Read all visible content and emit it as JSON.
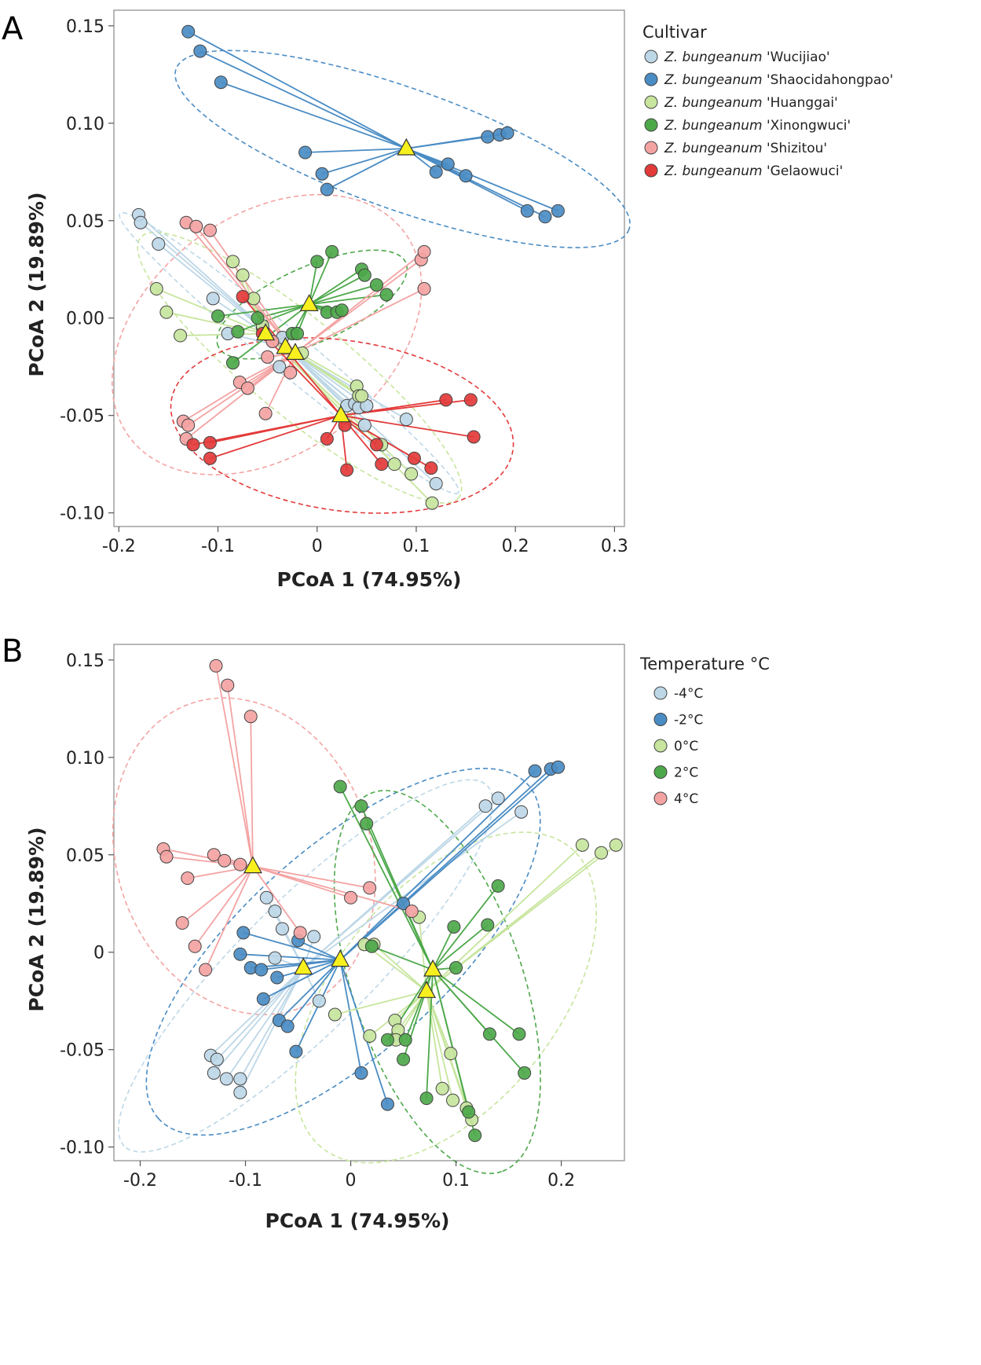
{
  "chart_data": [
    {
      "panel": "A",
      "type": "scatter",
      "subtype": "PCoA ordination with group centroids and spider lines",
      "xlabel": "PCoA 1 (74.95%)",
      "ylabel": "PCoA 2 (19.89%)",
      "xlim": [
        -0.205,
        0.31
      ],
      "ylim": [
        -0.107,
        0.158
      ],
      "xticks": [
        -0.2,
        -0.1,
        0,
        0.1,
        0.2,
        0.3
      ],
      "xtick_labels": [
        "-0.2",
        "-0.1",
        "0",
        "0.1",
        "0.2",
        "0.3"
      ],
      "yticks": [
        0.15,
        0.1,
        0.05,
        0.0,
        -0.05,
        -0.1
      ],
      "ytick_labels": [
        "0.15",
        "0.10",
        "0.05",
        "0.00",
        "-0.05",
        "-0.10"
      ],
      "legend_title": "Cultivar",
      "legend_position": "right",
      "centroid_marker": "yellow triangle",
      "series": [
        {
          "prefix": "Z. bungeanum",
          "name": "'Wucijiao'",
          "color": "#BDD7E7",
          "centroid": [
            -0.032,
            -0.015
          ],
          "points": [
            [
              -0.18,
              0.053
            ],
            [
              -0.178,
              0.049
            ],
            [
              -0.16,
              0.038
            ],
            [
              -0.105,
              0.01
            ],
            [
              -0.09,
              -0.008
            ],
            [
              -0.055,
              -0.005
            ],
            [
              -0.035,
              -0.01
            ],
            [
              -0.038,
              -0.025
            ],
            [
              0.03,
              -0.045
            ],
            [
              0.038,
              -0.044
            ],
            [
              0.042,
              -0.046
            ],
            [
              0.05,
              -0.045
            ],
            [
              0.048,
              -0.055
            ],
            [
              0.09,
              -0.052
            ],
            [
              0.12,
              -0.085
            ]
          ]
        },
        {
          "prefix": "Z. bungeanum",
          "name": "'Shaocidahongpao'",
          "color": "#4A8CC4",
          "centroid": [
            0.09,
            0.087
          ],
          "points": [
            [
              -0.13,
              0.147
            ],
            [
              -0.118,
              0.137
            ],
            [
              -0.097,
              0.121
            ],
            [
              -0.012,
              0.085
            ],
            [
              0.005,
              0.074
            ],
            [
              0.01,
              0.066
            ],
            [
              0.12,
              0.075
            ],
            [
              0.132,
              0.079
            ],
            [
              0.15,
              0.073
            ],
            [
              0.172,
              0.093
            ],
            [
              0.184,
              0.094
            ],
            [
              0.192,
              0.095
            ],
            [
              0.212,
              0.055
            ],
            [
              0.23,
              0.052
            ],
            [
              0.243,
              0.055
            ]
          ]
        },
        {
          "prefix": "Z. bungeanum",
          "name": "'Huanggai'",
          "color": "#C7E59D",
          "centroid": [
            -0.052,
            -0.008
          ],
          "points": [
            [
              -0.162,
              0.015
            ],
            [
              -0.152,
              0.003
            ],
            [
              -0.138,
              -0.009
            ],
            [
              -0.085,
              0.029
            ],
            [
              -0.075,
              0.022
            ],
            [
              -0.064,
              0.01
            ],
            [
              -0.055,
              -0.004
            ],
            [
              -0.015,
              -0.018
            ],
            [
              0.04,
              -0.035
            ],
            [
              0.042,
              -0.04
            ],
            [
              0.045,
              -0.04
            ],
            [
              0.065,
              -0.065
            ],
            [
              0.078,
              -0.075
            ],
            [
              0.095,
              -0.08
            ],
            [
              0.116,
              -0.095
            ]
          ]
        },
        {
          "prefix": "Z. bungeanum",
          "name": "'Xinongwuci'",
          "color": "#4DA84A",
          "centroid": [
            -0.008,
            0.007
          ],
          "points": [
            [
              -0.085,
              -0.023
            ],
            [
              -0.08,
              -0.007
            ],
            [
              -0.06,
              0.0
            ],
            [
              -0.025,
              -0.008
            ],
            [
              -0.02,
              -0.008
            ],
            [
              0.0,
              0.029
            ],
            [
              0.015,
              0.034
            ],
            [
              0.01,
              0.003
            ],
            [
              0.02,
              0.003
            ],
            [
              0.025,
              0.004
            ],
            [
              0.045,
              0.025
            ],
            [
              0.048,
              0.022
            ],
            [
              0.06,
              0.017
            ],
            [
              0.07,
              0.012
            ],
            [
              -0.1,
              0.001
            ]
          ]
        },
        {
          "prefix": "Z. bungeanum",
          "name": "'Shizitou'",
          "color": "#F4A3A3",
          "centroid": [
            -0.022,
            -0.018
          ],
          "points": [
            [
              -0.132,
              0.049
            ],
            [
              -0.122,
              0.047
            ],
            [
              -0.108,
              0.045
            ],
            [
              -0.078,
              -0.033
            ],
            [
              -0.07,
              -0.036
            ],
            [
              -0.052,
              -0.049
            ],
            [
              -0.027,
              -0.028
            ],
            [
              -0.05,
              -0.02
            ],
            [
              -0.135,
              -0.053
            ],
            [
              -0.13,
              -0.055
            ],
            [
              -0.132,
              -0.062
            ],
            [
              0.105,
              0.03
            ],
            [
              0.108,
              0.034
            ],
            [
              0.108,
              0.015
            ],
            [
              -0.045,
              -0.012
            ]
          ]
        },
        {
          "prefix": "Z. bungeanum",
          "name": "'Gelaowuci'",
          "color": "#E33A3A",
          "centroid": [
            0.024,
            -0.05
          ],
          "points": [
            [
              -0.125,
              -0.065
            ],
            [
              -0.108,
              -0.064
            ],
            [
              -0.108,
              -0.072
            ],
            [
              -0.075,
              0.011
            ],
            [
              0.01,
              -0.062
            ],
            [
              0.028,
              -0.055
            ],
            [
              0.03,
              -0.078
            ],
            [
              0.06,
              -0.065
            ],
            [
              0.065,
              -0.075
            ],
            [
              0.098,
              -0.072
            ],
            [
              0.115,
              -0.077
            ],
            [
              0.13,
              -0.042
            ],
            [
              0.155,
              -0.042
            ],
            [
              0.158,
              -0.061
            ],
            [
              -0.055,
              -0.008
            ]
          ]
        }
      ]
    },
    {
      "panel": "B",
      "type": "scatter",
      "subtype": "PCoA ordination with group centroids and spider lines",
      "xlabel": "PCoA 1 (74.95%)",
      "ylabel": "PCoA 2 (19.89%)",
      "xlim": [
        -0.225,
        0.26
      ],
      "ylim": [
        -0.107,
        0.158
      ],
      "xticks": [
        -0.2,
        -0.1,
        0,
        0.1,
        0.2
      ],
      "xtick_labels": [
        "-0.2",
        "-0.1",
        "0",
        "0.1",
        "0.2"
      ],
      "yticks": [
        0.15,
        0.1,
        0.05,
        0.0,
        -0.05,
        -0.1
      ],
      "ytick_labels": [
        "0.15",
        "0.10",
        "0.05",
        "0",
        "-0.05",
        "-0.10"
      ],
      "legend_title": "Temperature °C",
      "legend_position": "right",
      "centroid_marker": "yellow triangle",
      "series": [
        {
          "prefix": "",
          "name": "-4°C",
          "color": "#BDD7E7",
          "centroid": [
            -0.045,
            -0.008
          ],
          "points": [
            [
              -0.133,
              -0.053
            ],
            [
              -0.13,
              -0.062
            ],
            [
              -0.127,
              -0.055
            ],
            [
              -0.118,
              -0.065
            ],
            [
              -0.105,
              -0.065
            ],
            [
              -0.105,
              -0.072
            ],
            [
              -0.08,
              0.028
            ],
            [
              -0.072,
              0.021
            ],
            [
              -0.065,
              0.012
            ],
            [
              -0.072,
              -0.003
            ],
            [
              -0.03,
              -0.025
            ],
            [
              0.128,
              0.075
            ],
            [
              0.14,
              0.079
            ],
            [
              0.162,
              0.072
            ],
            [
              -0.035,
              0.008
            ]
          ]
        },
        {
          "prefix": "",
          "name": "-2°C",
          "color": "#4A8CC4",
          "centroid": [
            -0.01,
            -0.004
          ],
          "points": [
            [
              -0.102,
              0.01
            ],
            [
              -0.105,
              -0.001
            ],
            [
              -0.095,
              -0.008
            ],
            [
              -0.085,
              -0.009
            ],
            [
              -0.07,
              -0.013
            ],
            [
              -0.083,
              -0.024
            ],
            [
              -0.068,
              -0.035
            ],
            [
              -0.06,
              -0.038
            ],
            [
              -0.052,
              -0.051
            ],
            [
              -0.05,
              0.006
            ],
            [
              0.05,
              0.025
            ],
            [
              0.175,
              0.093
            ],
            [
              0.19,
              0.094
            ],
            [
              0.197,
              0.095
            ],
            [
              0.01,
              -0.062
            ],
            [
              0.035,
              -0.078
            ]
          ]
        },
        {
          "prefix": "",
          "name": "0°C",
          "color": "#C7E59D",
          "centroid": [
            0.072,
            -0.02
          ],
          "points": [
            [
              -0.015,
              -0.032
            ],
            [
              0.013,
              0.004
            ],
            [
              0.022,
              0.004
            ],
            [
              0.018,
              -0.043
            ],
            [
              0.042,
              -0.035
            ],
            [
              0.045,
              -0.04
            ],
            [
              0.043,
              -0.045
            ],
            [
              0.065,
              0.018
            ],
            [
              0.087,
              -0.07
            ],
            [
              0.095,
              -0.052
            ],
            [
              0.097,
              -0.076
            ],
            [
              0.11,
              -0.08
            ],
            [
              0.115,
              -0.086
            ],
            [
              0.22,
              0.055
            ],
            [
              0.238,
              0.051
            ],
            [
              0.252,
              0.055
            ]
          ]
        },
        {
          "prefix": "",
          "name": "2°C",
          "color": "#4DA84A",
          "centroid": [
            0.078,
            -0.009
          ],
          "points": [
            [
              -0.01,
              0.085
            ],
            [
              0.01,
              0.075
            ],
            [
              0.015,
              0.066
            ],
            [
              0.02,
              0.003
            ],
            [
              0.035,
              -0.045
            ],
            [
              0.052,
              -0.045
            ],
            [
              0.05,
              -0.055
            ],
            [
              0.072,
              -0.075
            ],
            [
              0.1,
              -0.008
            ],
            [
              0.112,
              -0.082
            ],
            [
              0.118,
              -0.094
            ],
            [
              0.13,
              0.014
            ],
            [
              0.14,
              0.034
            ],
            [
              0.132,
              -0.042
            ],
            [
              0.16,
              -0.042
            ],
            [
              0.165,
              -0.062
            ],
            [
              0.098,
              0.013
            ]
          ]
        },
        {
          "prefix": "",
          "name": "4°C",
          "color": "#F4A3A3",
          "centroid": [
            -0.093,
            0.044
          ],
          "points": [
            [
              -0.128,
              0.147
            ],
            [
              -0.117,
              0.137
            ],
            [
              -0.095,
              0.121
            ],
            [
              -0.178,
              0.053
            ],
            [
              -0.175,
              0.049
            ],
            [
              -0.155,
              0.038
            ],
            [
              -0.16,
              0.015
            ],
            [
              -0.148,
              0.003
            ],
            [
              -0.138,
              -0.009
            ],
            [
              -0.13,
              0.05
            ],
            [
              -0.12,
              0.047
            ],
            [
              -0.105,
              0.045
            ],
            [
              0.0,
              0.028
            ],
            [
              0.018,
              0.033
            ],
            [
              0.058,
              0.021
            ],
            [
              -0.048,
              0.01
            ]
          ]
        }
      ]
    }
  ],
  "panels": {
    "A": {
      "letter": "A",
      "legend_title": "Cultivar"
    },
    "B": {
      "letter": "B",
      "legend_title": "Temperature °C"
    }
  }
}
